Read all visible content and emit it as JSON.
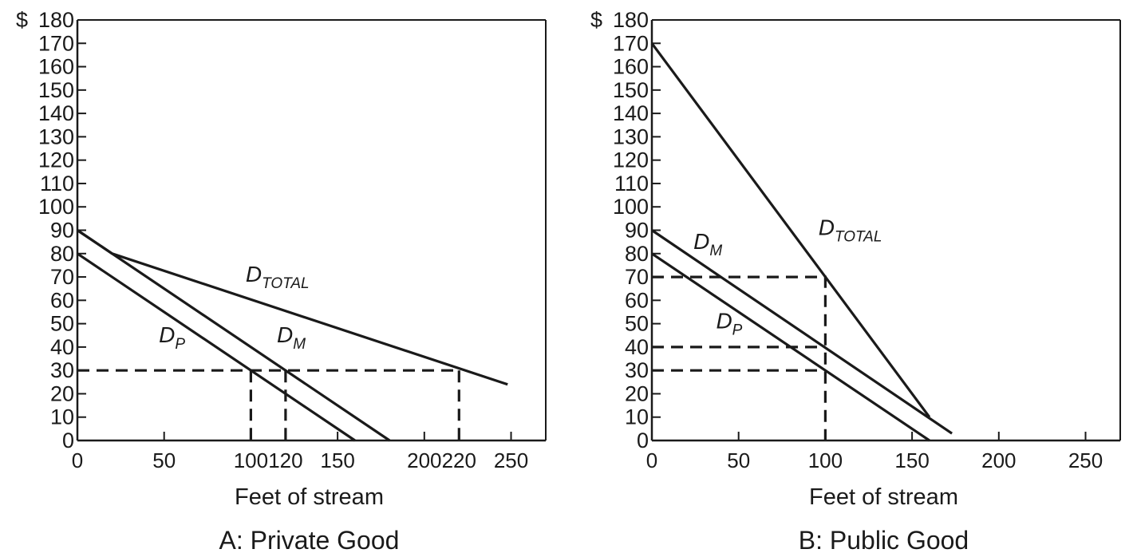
{
  "chart_data": [
    {
      "type": "line",
      "title": "A: Private Good",
      "xlabel": "Feet of stream",
      "ylabel": "",
      "y_prefix": "$",
      "xlim": [
        0,
        270
      ],
      "ylim": [
        0,
        180
      ],
      "x_ticks": [
        0,
        50,
        100,
        120,
        150,
        200,
        220,
        250
      ],
      "y_ticks": [
        0,
        10,
        20,
        30,
        40,
        50,
        60,
        70,
        80,
        90,
        100,
        110,
        120,
        130,
        140,
        150,
        160,
        170,
        180
      ],
      "grid": false,
      "series": [
        {
          "name": "D",
          "subscript": "P",
          "points": [
            [
              0,
              80
            ],
            [
              160,
              0
            ]
          ]
        },
        {
          "name": "D",
          "subscript": "M",
          "points": [
            [
              0,
              90
            ],
            [
              180,
              0
            ]
          ]
        },
        {
          "name": "D",
          "subscript": "TOTAL",
          "points": [
            [
              0,
              90
            ],
            [
              20,
              80
            ],
            [
              248,
              24
            ]
          ]
        }
      ],
      "curve_labels": [
        {
          "series": 0,
          "x": 47,
          "y": 42
        },
        {
          "series": 1,
          "x": 115,
          "y": 42
        },
        {
          "series": 2,
          "x": 97,
          "y": 68
        }
      ],
      "dashed_guides": [
        {
          "points": [
            [
              0,
              30
            ],
            [
              220,
              30
            ]
          ]
        },
        {
          "points": [
            [
              100,
              30
            ],
            [
              100,
              0
            ]
          ]
        },
        {
          "points": [
            [
              120,
              30
            ],
            [
              120,
              0
            ]
          ]
        },
        {
          "points": [
            [
              220,
              30
            ],
            [
              220,
              0
            ]
          ]
        }
      ]
    },
    {
      "type": "line",
      "title": "B: Public Good",
      "xlabel": "Feet of stream",
      "ylabel": "",
      "y_prefix": "$",
      "xlim": [
        0,
        270
      ],
      "ylim": [
        0,
        180
      ],
      "x_ticks": [
        0,
        50,
        100,
        150,
        200,
        250
      ],
      "y_ticks": [
        0,
        10,
        20,
        30,
        40,
        50,
        60,
        70,
        80,
        90,
        100,
        110,
        120,
        130,
        140,
        150,
        160,
        170,
        180
      ],
      "grid": false,
      "series": [
        {
          "name": "D",
          "subscript": "M",
          "points": [
            [
              0,
              90
            ],
            [
              173,
              3
            ]
          ]
        },
        {
          "name": "D",
          "subscript": "P",
          "points": [
            [
              0,
              80
            ],
            [
              160,
              0
            ]
          ]
        },
        {
          "name": "D",
          "subscript": "TOTAL",
          "points": [
            [
              0,
              170
            ],
            [
              160,
              10
            ]
          ]
        }
      ],
      "curve_labels": [
        {
          "series": 0,
          "x": 24,
          "y": 82
        },
        {
          "series": 1,
          "x": 37,
          "y": 48
        },
        {
          "series": 2,
          "x": 96,
          "y": 88
        }
      ],
      "dashed_guides": [
        {
          "points": [
            [
              0,
              70
            ],
            [
              100,
              70
            ],
            [
              100,
              0
            ]
          ]
        },
        {
          "points": [
            [
              0,
              40
            ],
            [
              100,
              40
            ]
          ]
        },
        {
          "points": [
            [
              0,
              30
            ],
            [
              100,
              30
            ]
          ]
        }
      ]
    }
  ]
}
